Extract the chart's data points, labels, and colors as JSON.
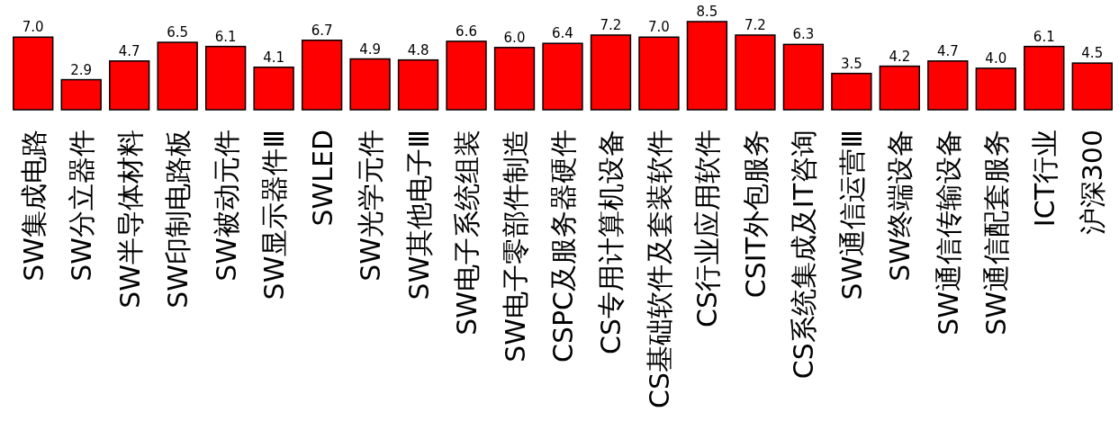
{
  "chart_data": {
    "type": "bar",
    "categories": [
      "SW集成电路",
      "SW分立器件",
      "SW半导体材料",
      "SW印制电路板",
      "SW被动元件",
      "SW显示器件Ⅲ",
      "SWLED",
      "SW光学元件",
      "SW其他电子Ⅲ",
      "SW电子系统组装",
      "SW电子零部件制造",
      "CSPC及服务器硬件",
      "CS专用计算机设备",
      "CS基础软件及套装软件",
      "CS行业应用软件",
      "CSIT外包服务",
      "CS系统集成及IT咨询",
      "SW通信运营Ⅲ",
      "SW终端设备",
      "SW通信传输设备",
      "SW通信配套服务",
      "ICT行业",
      "沪深300"
    ],
    "values": [
      7.0,
      2.9,
      4.7,
      6.5,
      6.1,
      4.1,
      6.7,
      4.9,
      4.8,
      6.6,
      6.0,
      6.4,
      7.2,
      7.0,
      8.5,
      7.2,
      6.3,
      3.5,
      4.2,
      4.7,
      4.0,
      6.1,
      4.5
    ],
    "value_labels": [
      "7.0",
      "2.9",
      "4.7",
      "6.5",
      "6.1",
      "4.1",
      "6.7",
      "4.9",
      "4.8",
      "6.6",
      "6.0",
      "6.4",
      "7.2",
      "7.0",
      "8.5",
      "7.2",
      "6.3",
      "3.5",
      "4.2",
      "4.7",
      "4.0",
      "6.1",
      "4.5"
    ],
    "color": "#ff0000"
  }
}
